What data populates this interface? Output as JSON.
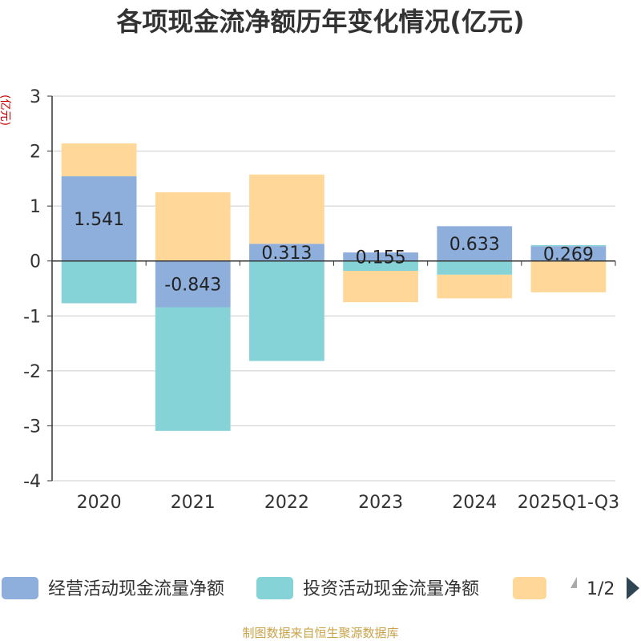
{
  "chart_data": {
    "type": "bar",
    "stacked": true,
    "title": "各项现金流净额历年变化情况(亿元)",
    "ylabel": "(亿元)",
    "ylim": [
      -4,
      3
    ],
    "yticks": [
      3,
      2,
      1,
      0,
      -1,
      -2,
      -3,
      -4
    ],
    "categories": [
      "2020",
      "2021",
      "2022",
      "2023",
      "2024",
      "2025Q1-Q3"
    ],
    "series": [
      {
        "name": "经营活动现金流量净额",
        "color": "#8eaedc",
        "labels_shown": true,
        "values": [
          1.541,
          -0.843,
          0.313,
          0.155,
          0.633,
          0.269
        ]
      },
      {
        "name": "投资活动现金流量净额",
        "color": "#86d3d7",
        "labels_shown": false,
        "values": [
          -0.77,
          -2.25,
          -1.82,
          -0.18,
          -0.25,
          0.02
        ]
      },
      {
        "name": "",
        "color": "#ffd899",
        "labels_shown": false,
        "values": [
          0.6,
          1.25,
          1.26,
          -0.57,
          -0.43,
          -0.57
        ]
      }
    ],
    "legend": {
      "position": "bottom",
      "page": "1/2"
    },
    "source": "制图数据来自恒生聚源数据库"
  }
}
